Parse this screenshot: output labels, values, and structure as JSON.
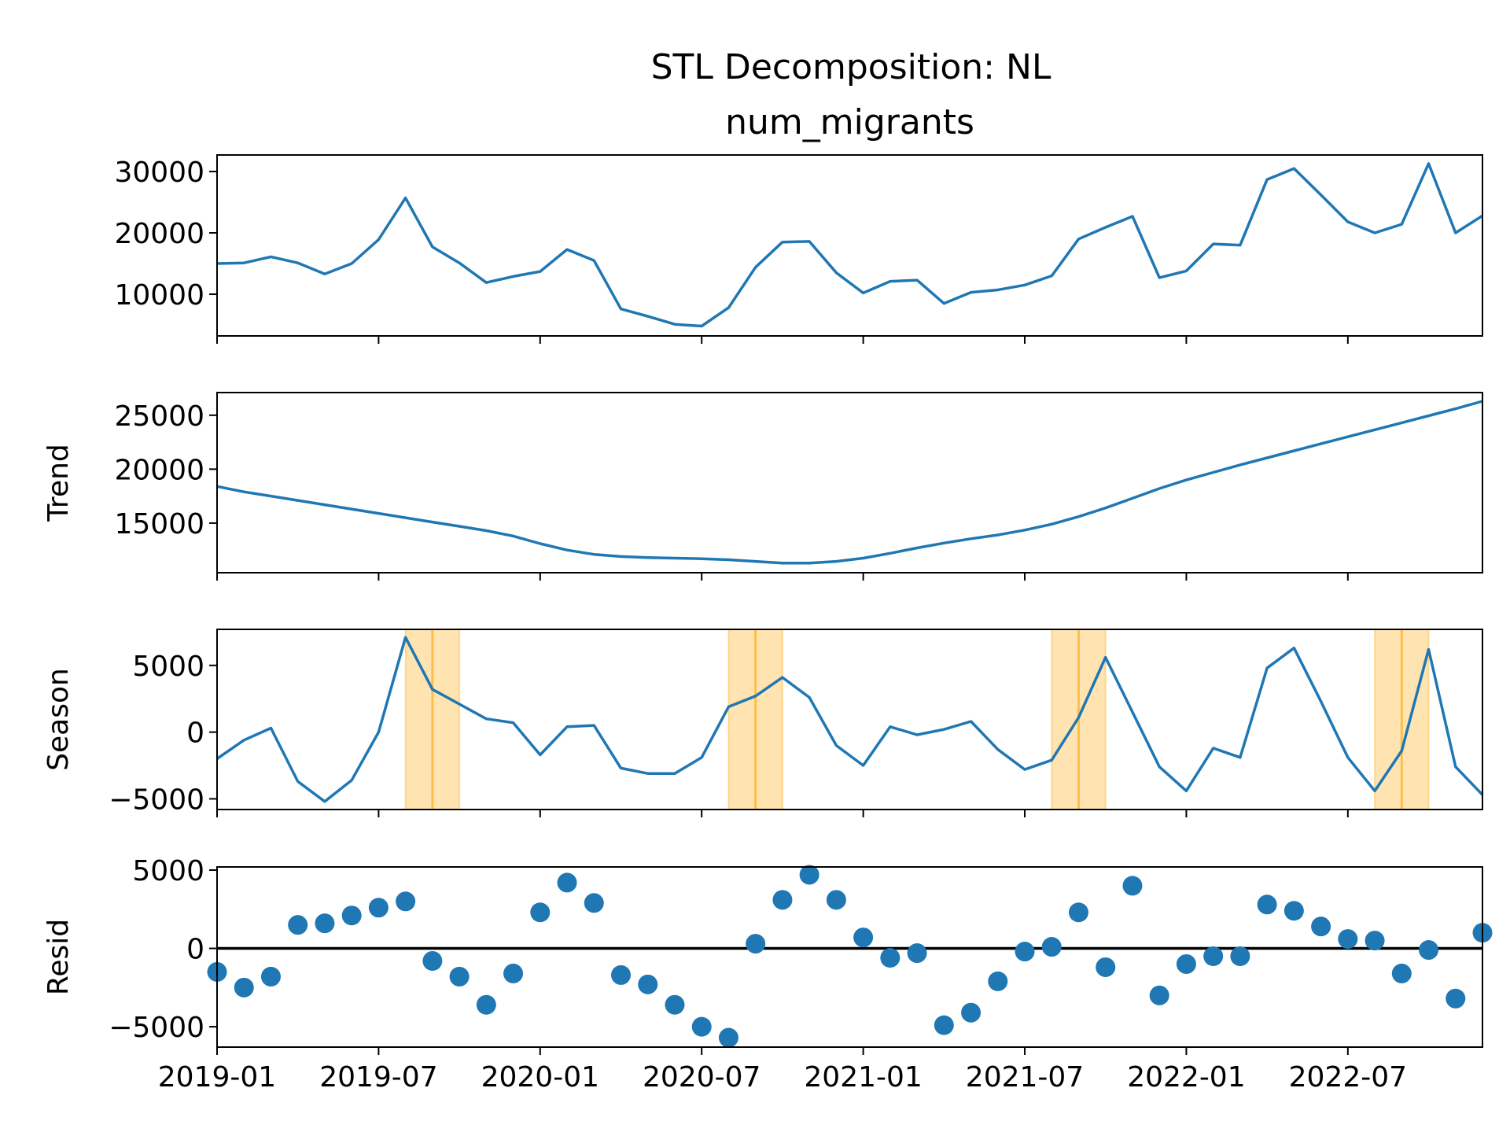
{
  "chart_data": {
    "type": "line",
    "title": "STL Decomposition: NL",
    "x": [
      "2019-01",
      "2019-02",
      "2019-03",
      "2019-04",
      "2019-05",
      "2019-06",
      "2019-07",
      "2019-08",
      "2019-09",
      "2019-10",
      "2019-11",
      "2019-12",
      "2020-01",
      "2020-02",
      "2020-03",
      "2020-04",
      "2020-05",
      "2020-06",
      "2020-07",
      "2020-08",
      "2020-09",
      "2020-10",
      "2020-11",
      "2020-12",
      "2021-01",
      "2021-02",
      "2021-03",
      "2021-04",
      "2021-05",
      "2021-06",
      "2021-07",
      "2021-08",
      "2021-09",
      "2021-10",
      "2021-11",
      "2021-12",
      "2022-01",
      "2022-02",
      "2022-03",
      "2022-04",
      "2022-05",
      "2022-06",
      "2022-07",
      "2022-08",
      "2022-09",
      "2022-10",
      "2022-11",
      "2022-12"
    ],
    "xticks": [
      "2019-01",
      "2019-07",
      "2020-01",
      "2020-07",
      "2021-01",
      "2021-07",
      "2022-01",
      "2022-07"
    ],
    "xlim": [
      "2019-01",
      "2022-12"
    ],
    "colors": {
      "series": "#1f77b4",
      "highlight": "#ffa500",
      "zero_line": "#000000"
    },
    "panels": [
      {
        "name": "num_migrants",
        "title": "num_migrants",
        "ylabel": "",
        "kind": "line",
        "ylim": [
          3200,
          32700
        ],
        "yticks": [
          10000,
          20000,
          30000
        ],
        "values": [
          15000,
          15100,
          16100,
          15100,
          13300,
          15000,
          18900,
          25700,
          17700,
          15100,
          11900,
          12900,
          13700,
          17300,
          15500,
          7600,
          6400,
          5100,
          4800,
          7800,
          14400,
          18500,
          18600,
          13500,
          10200,
          12100,
          12300,
          8500,
          10300,
          10700,
          11500,
          13000,
          19000,
          20900,
          22700,
          12700,
          13800,
          18200,
          18000,
          28700,
          30500,
          26200,
          21800,
          20000,
          21400,
          31300,
          20000,
          22800
        ]
      },
      {
        "name": "trend",
        "title": "",
        "ylabel": "Trend",
        "kind": "line",
        "ylim": [
          10400,
          27100
        ],
        "yticks": [
          15000,
          20000,
          25000
        ],
        "values": [
          18400,
          17900,
          17500,
          17100,
          16700,
          16300,
          15900,
          15500,
          15100,
          14700,
          14300,
          13800,
          13100,
          12500,
          12100,
          11900,
          11800,
          11750,
          11700,
          11600,
          11450,
          11300,
          11300,
          11450,
          11750,
          12200,
          12700,
          13150,
          13550,
          13900,
          14350,
          14900,
          15600,
          16400,
          17300,
          18200,
          19000,
          19700,
          20400,
          21050,
          21700,
          22350,
          23000,
          23650,
          24300,
          24950,
          25600,
          26300
        ]
      },
      {
        "name": "season",
        "title": "",
        "ylabel": "Season",
        "kind": "line",
        "ylim": [
          -5800,
          7700
        ],
        "yticks": [
          -5000,
          0,
          5000
        ],
        "values": [
          -2000,
          -600,
          300,
          -3700,
          -5200,
          -3600,
          0,
          7100,
          3200,
          2100,
          1000,
          700,
          -1700,
          400,
          500,
          -2700,
          -3100,
          -3100,
          -1900,
          1900,
          2700,
          4100,
          2600,
          -1000,
          -2500,
          400,
          -200,
          200,
          800,
          -1300,
          -2800,
          -2100,
          1100,
          5600,
          1500,
          -2600,
          -4400,
          -1200,
          -1900,
          4800,
          6300,
          2300,
          -1900,
          -4400,
          -1400,
          6200,
          -2600,
          -4700
        ],
        "highlights": [
          {
            "start": "2019-08",
            "end": "2019-10"
          },
          {
            "start": "2020-08",
            "end": "2020-10"
          },
          {
            "start": "2021-08",
            "end": "2021-10"
          },
          {
            "start": "2022-08",
            "end": "2022-10"
          }
        ]
      },
      {
        "name": "resid",
        "title": "",
        "ylabel": "Resid",
        "kind": "scatter",
        "ylim": [
          -6300,
          5200
        ],
        "yticks": [
          -5000,
          0,
          5000
        ],
        "zero_line": 0,
        "values": [
          -1500,
          -2500,
          -1800,
          1500,
          1600,
          2100,
          2600,
          3000,
          -800,
          -1800,
          -3600,
          -1600,
          2300,
          4200,
          2900,
          -1700,
          -2300,
          -3600,
          -5000,
          -5700,
          300,
          3100,
          4700,
          3100,
          700,
          -600,
          -300,
          -4900,
          -4100,
          -2100,
          -200,
          100,
          2300,
          -1200,
          4000,
          -3000,
          -1000,
          -500,
          -500,
          2800,
          2400,
          1400,
          600,
          500,
          -1600,
          -100,
          -3200,
          1000
        ]
      }
    ]
  }
}
